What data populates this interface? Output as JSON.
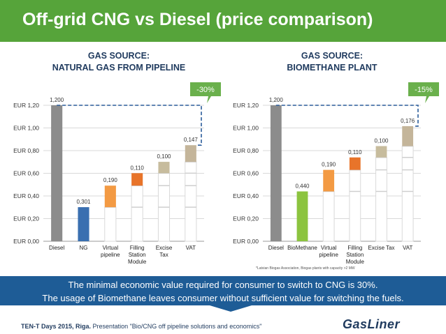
{
  "title": "Off-grid CNG vs Diesel (price comparison)",
  "panels": [
    {
      "head_line1": "GAS SOURCE:",
      "head_line2": "NATURAL GAS FROM PIPELINE",
      "reduction": "-30%"
    },
    {
      "head_line1": "GAS SOURCE:",
      "head_line2": "BIOMETHANE PLANT",
      "reduction": "-15%"
    }
  ],
  "chart_data": [
    {
      "type": "bar",
      "subtype": "waterfall",
      "categories": [
        "Diesel",
        "NG",
        "Virtual pipeline",
        "Filling Station Module",
        "Excise Tax",
        "VAT"
      ],
      "category_lines": [
        [
          "Diesel"
        ],
        [
          "NG"
        ],
        [
          "Virtual",
          "pipeline"
        ],
        [
          "Filling",
          "Station",
          "Module"
        ],
        [
          "Excise",
          "Tax"
        ],
        [
          "VAT"
        ]
      ],
      "values": [
        1.2,
        0.301,
        0.19,
        0.11,
        0.1,
        0.147
      ],
      "labels": [
        "1,200",
        "0,301",
        "0,190",
        "0,110",
        "0,100",
        "0,147"
      ],
      "colors": [
        "#8c8c8c",
        "#3a6fb0",
        "#f39a43",
        "#e8742a",
        "#c7bc9d",
        "#c4b59a"
      ],
      "ylim": [
        0,
        1.2
      ],
      "yticks": [
        "EUR 0,00",
        "EUR 0,20",
        "EUR 0,40",
        "EUR 0,60",
        "EUR 0,80",
        "EUR 1,00",
        "EUR 1,20"
      ],
      "grid": true,
      "annotation": "-30%"
    },
    {
      "type": "bar",
      "subtype": "waterfall",
      "categories": [
        "Diesel",
        "BioMethane",
        "Virtual pipeline",
        "Filling Station Module",
        "Excise Tax",
        "VAT"
      ],
      "category_lines": [
        [
          "Diesel"
        ],
        [
          "BioMethane"
        ],
        [
          "Virtual",
          "pipeline"
        ],
        [
          "Filling",
          "Station",
          "Module"
        ],
        [
          "Excise Tax"
        ],
        [
          "VAT"
        ]
      ],
      "values": [
        1.2,
        0.44,
        0.19,
        0.11,
        0.1,
        0.176
      ],
      "labels": [
        "1,200",
        "0,440",
        "0,190",
        "0,110",
        "0,100",
        "0,176"
      ],
      "colors": [
        "#8c8c8c",
        "#8cc43f",
        "#f39a43",
        "#e8742a",
        "#c7bc9d",
        "#c4b59a"
      ],
      "ylim": [
        0,
        1.2
      ],
      "yticks": [
        "EUR 0,00",
        "EUR 0,20",
        "EUR 0,40",
        "EUR 0,60",
        "EUR 0,80",
        "EUR 1,00",
        "EUR 1,20"
      ],
      "grid": true,
      "annotation": "-15%",
      "footnote": "*Latvian Biogas Association, Biogas plants with capacity >2 MW"
    }
  ],
  "callout": {
    "line1": "The minimal economic value required for consumer to switch to CNG is 30%.",
    "line2": "The usage of Biomethane leaves consumer without sufficient value for switching the fuels."
  },
  "footer": {
    "bold": "TEN-T Days 2015, Riga.",
    "text": " Presentation \"Bio/CNG off pipeline solutions and economics\""
  },
  "logo": "GasLiner",
  "accent_color": "#56a43a",
  "callout_color": "#1e5c96"
}
